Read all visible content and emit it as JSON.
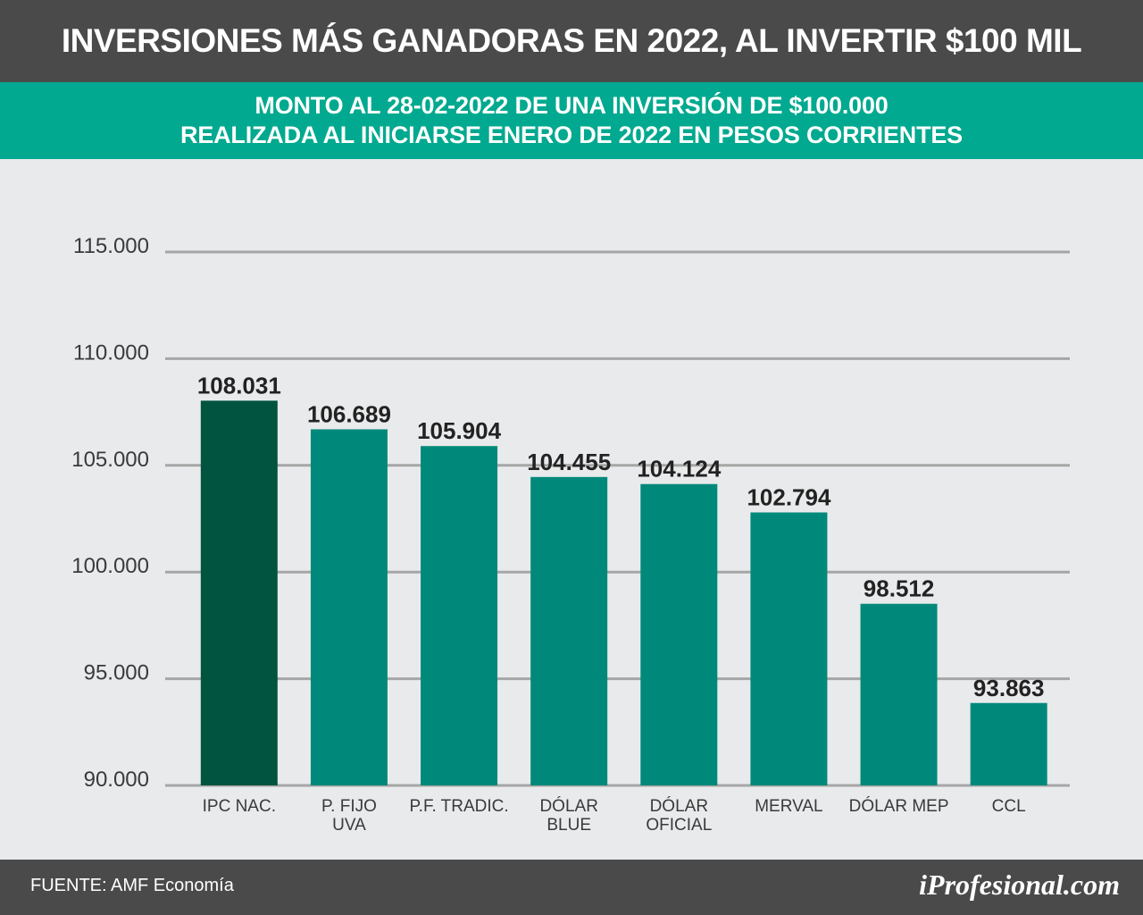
{
  "header": {
    "title": "INVERSIONES MÁS GANADORAS EN 2022, AL INVERTIR $100 MIL"
  },
  "subheader": {
    "line1": "MONTO AL 28-02-2022 DE UNA INVERSIÓN DE $100.000",
    "line2": "REALIZADA AL INICIARSE ENERO DE 2022 EN PESOS CORRIENTES"
  },
  "footer": {
    "source": "FUENTE: AMF Economía",
    "brand": "iProfesional.com"
  },
  "colors": {
    "highlight_bar": "#005440",
    "bar": "#00897a",
    "grid": "#a6a6a6"
  },
  "chart_data": {
    "type": "bar",
    "title": "",
    "xlabel": "",
    "ylabel": "",
    "ylim": [
      90000,
      115000
    ],
    "yticks": [
      90000,
      95000,
      100000,
      105000,
      110000,
      115000
    ],
    "ytick_labels": [
      "90.000",
      "95.000",
      "100.000",
      "105.000",
      "110.000",
      "115.000"
    ],
    "grid": true,
    "categories": [
      [
        "IPC NAC."
      ],
      [
        "P. FIJO",
        "UVA"
      ],
      [
        "P.F. TRADIC."
      ],
      [
        "DÓLAR",
        "BLUE"
      ],
      [
        "DÓLAR",
        "OFICIAL"
      ],
      [
        "MERVAL"
      ],
      [
        "DÓLAR MEP"
      ],
      [
        "CCL"
      ]
    ],
    "values": [
      108031,
      106689,
      105904,
      104455,
      104124,
      102794,
      98512,
      93863
    ],
    "value_labels": [
      "108.031",
      "106.689",
      "105.904",
      "104.455",
      "104.124",
      "102.794",
      "98.512",
      "93.863"
    ],
    "highlight_index": 0
  }
}
